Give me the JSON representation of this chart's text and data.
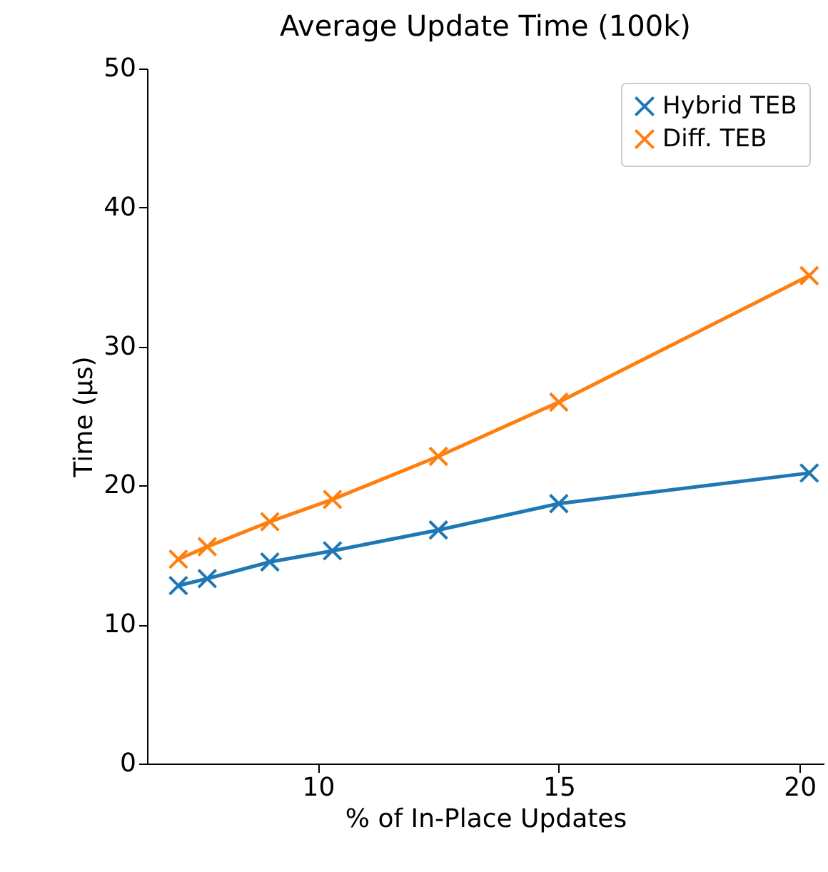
{
  "chart_data": {
    "type": "line",
    "title": "Average Update Time (100k)",
    "xlabel": "% of In-Place Updates",
    "ylabel": "Time (µs)",
    "x": [
      7.1,
      7.7,
      9.0,
      10.3,
      12.5,
      15.0,
      20.2
    ],
    "series": [
      {
        "name": "Hybrid TEB",
        "color": "#1f77b4",
        "values": [
          12.8,
          13.3,
          14.5,
          15.3,
          16.8,
          18.7,
          20.9
        ]
      },
      {
        "name": "Diff. TEB",
        "color": "#ff7f0e",
        "values": [
          14.7,
          15.6,
          17.4,
          19.0,
          22.1,
          26.0,
          35.1
        ]
      }
    ],
    "xlim": [
      6.45,
      20.5
    ],
    "xticks": [
      10,
      15,
      20
    ],
    "ylim": [
      0,
      50
    ],
    "yticks": [
      0,
      10,
      20,
      30,
      40,
      50
    ],
    "grid": false,
    "legend": "top right",
    "marker": "cross",
    "line_style": "solid"
  }
}
